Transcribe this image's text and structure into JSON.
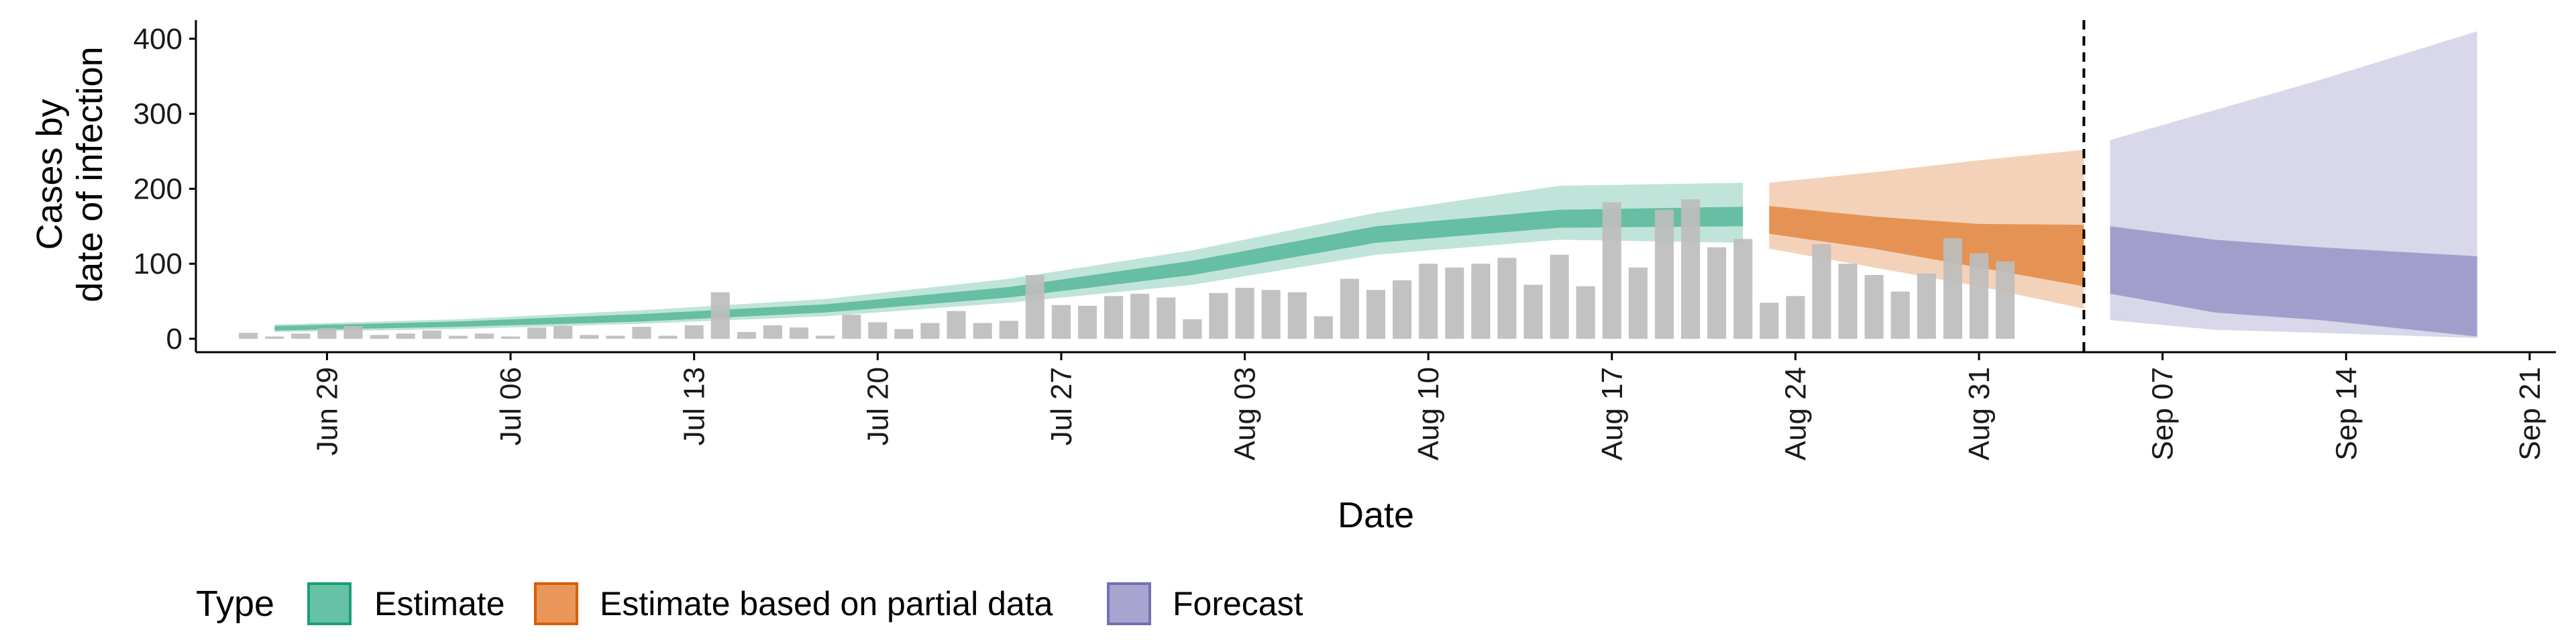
{
  "chart_data": {
    "type": "bar",
    "xlabel": "Date",
    "ylabel_lines": [
      "Cases by",
      "date of infection"
    ],
    "ylim": [
      0,
      430
    ],
    "y_ticks": [
      0,
      100,
      200,
      300,
      400
    ],
    "x_range": [
      "2020-06-24",
      "2020-09-22"
    ],
    "x_ticks": [
      {
        "date": "2020-06-29",
        "label": "Jun 29"
      },
      {
        "date": "2020-07-06",
        "label": "Jul 06"
      },
      {
        "date": "2020-07-13",
        "label": "Jul 13"
      },
      {
        "date": "2020-07-20",
        "label": "Jul 20"
      },
      {
        "date": "2020-07-27",
        "label": "Jul 27"
      },
      {
        "date": "2020-08-03",
        "label": "Aug 03"
      },
      {
        "date": "2020-08-10",
        "label": "Aug 10"
      },
      {
        "date": "2020-08-17",
        "label": "Aug 17"
      },
      {
        "date": "2020-08-24",
        "label": "Aug 24"
      },
      {
        "date": "2020-08-31",
        "label": "Aug 31"
      },
      {
        "date": "2020-09-07",
        "label": "Sep 07"
      },
      {
        "date": "2020-09-14",
        "label": "Sep 14"
      },
      {
        "date": "2020-09-21",
        "label": "Sep 21"
      }
    ],
    "bars": {
      "start_date": "2020-06-26",
      "color": "#bdbdbd",
      "values": [
        8,
        3,
        7,
        14,
        17,
        5,
        7,
        11,
        4,
        7,
        3,
        15,
        17,
        5,
        4,
        16,
        4,
        18,
        62,
        9,
        18,
        15,
        4,
        32,
        22,
        13,
        21,
        37,
        21,
        24,
        85,
        45,
        44,
        57,
        60,
        55,
        26,
        61,
        68,
        65,
        62,
        30,
        80,
        65,
        78,
        100,
        95,
        100,
        108,
        72,
        112,
        70,
        182,
        95,
        172,
        186,
        122,
        133,
        48,
        57,
        126,
        100,
        85,
        63,
        87,
        134,
        114,
        103
      ]
    },
    "vline_date": "2020-09-04",
    "legend": {
      "title": "Type",
      "position": "bottom-left",
      "entries": [
        {
          "label": "Estimate",
          "fill": "#66c2a5",
          "stroke": "#1b9e77"
        },
        {
          "label": "Estimate based on partial data",
          "fill": "#e8965a",
          "stroke": "#d95f02"
        },
        {
          "label": "Forecast",
          "fill": "#a8a4d0",
          "stroke": "#7570b3"
        }
      ]
    },
    "series": [
      {
        "type": "Estimate",
        "color": "#1b9e77",
        "x": [
          "2020-06-27",
          "2020-07-04",
          "2020-07-11",
          "2020-07-18",
          "2020-07-25",
          "2020-08-01",
          "2020-08-08",
          "2020-08-15",
          "2020-08-22"
        ],
        "median": [
          14,
          20,
          28,
          40,
          62,
          95,
          140,
          160,
          163
        ],
        "lower_50": [
          11,
          16,
          23,
          35,
          55,
          85,
          128,
          148,
          150
        ],
        "upper_50": [
          17,
          23,
          33,
          46,
          69,
          104,
          150,
          172,
          176
        ],
        "lower_90": [
          9,
          13,
          20,
          30,
          48,
          72,
          112,
          132,
          128
        ],
        "upper_90": [
          19,
          26,
          38,
          53,
          80,
          118,
          168,
          204,
          208
        ]
      },
      {
        "type": "Estimate based on partial data",
        "color": "#d95f02",
        "x": [
          "2020-08-23",
          "2020-08-27",
          "2020-08-31",
          "2020-09-04"
        ],
        "median": [
          158,
          138,
          118,
          100
        ],
        "lower_50": [
          140,
          120,
          95,
          70
        ],
        "upper_50": [
          177,
          163,
          153,
          152
        ],
        "lower_90": [
          120,
          95,
          70,
          40
        ],
        "upper_90": [
          208,
          222,
          238,
          252
        ]
      },
      {
        "type": "Forecast",
        "color": "#7570b3",
        "x": [
          "2020-09-05",
          "2020-09-09",
          "2020-09-13",
          "2020-09-19"
        ],
        "median": [
          108,
          85,
          75,
          60
        ],
        "lower_50": [
          60,
          35,
          25,
          3
        ],
        "upper_50": [
          150,
          132,
          122,
          110
        ],
        "lower_90": [
          25,
          12,
          8,
          1
        ],
        "upper_90": [
          265,
          305,
          345,
          410
        ]
      }
    ]
  }
}
